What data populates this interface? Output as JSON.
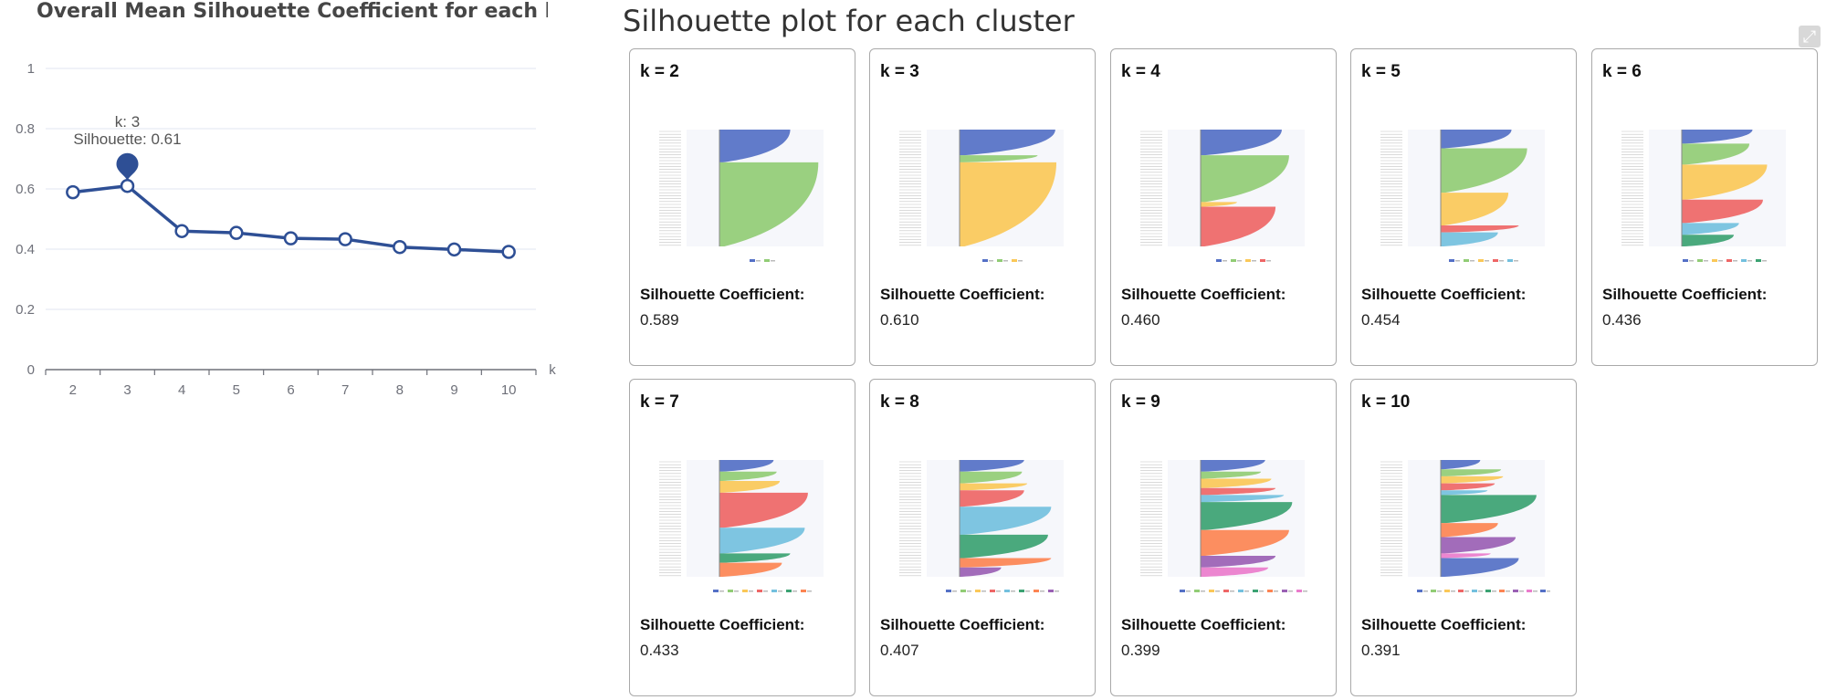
{
  "line_chart_title": "Overall Mean Silhouette Coefficient for each k",
  "panel_title": "Silhouette plot for each cluster",
  "expand_icon": "expand-icon",
  "coef_label": "Silhouette Coefficient:",
  "chart_data": {
    "type": "line",
    "title": "Overall Mean Silhouette Coefficient for each k",
    "xlabel": "k",
    "ylabel": "",
    "x": [
      2,
      3,
      4,
      5,
      6,
      7,
      8,
      9,
      10
    ],
    "values": [
      0.589,
      0.61,
      0.46,
      0.454,
      0.436,
      0.433,
      0.407,
      0.399,
      0.391
    ],
    "ylim": [
      0,
      1
    ],
    "yticks": [
      0,
      0.2,
      0.4,
      0.6,
      0.8,
      1
    ],
    "yticklabels": [
      "0",
      "0.2",
      "0.4",
      "0.6",
      "0.8",
      "1"
    ],
    "grid": true,
    "series_color": "#2e4f95",
    "tooltip": {
      "k_text": "k: 3",
      "value_text": "Silhouette: 0.61",
      "index": 1
    }
  },
  "cards": [
    {
      "k_label": "k = 2",
      "coef": "0.589",
      "clusters": [
        {
          "color": "#5470c6",
          "size": 0.28,
          "w": 0.68
        },
        {
          "color": "#91cc75",
          "size": 0.72,
          "w": 0.95
        }
      ]
    },
    {
      "k_label": "k = 3",
      "coef": "0.610",
      "clusters": [
        {
          "color": "#5470c6",
          "size": 0.22,
          "w": 0.92
        },
        {
          "color": "#91cc75",
          "size": 0.06,
          "w": 0.75
        },
        {
          "color": "#fac858",
          "size": 0.72,
          "w": 0.93
        }
      ]
    },
    {
      "k_label": "k = 4",
      "coef": "0.460",
      "clusters": [
        {
          "color": "#5470c6",
          "size": 0.22,
          "w": 0.78
        },
        {
          "color": "#91cc75",
          "size": 0.4,
          "w": 0.85
        },
        {
          "color": "#fac858",
          "size": 0.04,
          "w": 0.35
        },
        {
          "color": "#ee6666",
          "size": 0.34,
          "w": 0.72
        }
      ]
    },
    {
      "k_label": "k = 5",
      "coef": "0.454",
      "clusters": [
        {
          "color": "#5470c6",
          "size": 0.16,
          "w": 0.68
        },
        {
          "color": "#91cc75",
          "size": 0.38,
          "w": 0.83
        },
        {
          "color": "#fac858",
          "size": 0.28,
          "w": 0.65
        },
        {
          "color": "#ee6666",
          "size": 0.06,
          "w": 0.75
        },
        {
          "color": "#73c0de",
          "size": 0.12,
          "w": 0.55
        }
      ]
    },
    {
      "k_label": "k = 6",
      "coef": "0.436",
      "clusters": [
        {
          "color": "#5470c6",
          "size": 0.12,
          "w": 0.68
        },
        {
          "color": "#91cc75",
          "size": 0.18,
          "w": 0.65
        },
        {
          "color": "#fac858",
          "size": 0.3,
          "w": 0.82
        },
        {
          "color": "#ee6666",
          "size": 0.2,
          "w": 0.78
        },
        {
          "color": "#73c0de",
          "size": 0.1,
          "w": 0.55
        },
        {
          "color": "#3ba272",
          "size": 0.1,
          "w": 0.5
        }
      ]
    },
    {
      "k_label": "k = 7",
      "coef": "0.433",
      "clusters": [
        {
          "color": "#5470c6",
          "size": 0.1,
          "w": 0.52
        },
        {
          "color": "#91cc75",
          "size": 0.08,
          "w": 0.55
        },
        {
          "color": "#fac858",
          "size": 0.1,
          "w": 0.58
        },
        {
          "color": "#ee6666",
          "size": 0.3,
          "w": 0.85
        },
        {
          "color": "#73c0de",
          "size": 0.22,
          "w": 0.82
        },
        {
          "color": "#3ba272",
          "size": 0.08,
          "w": 0.68
        },
        {
          "color": "#fc8452",
          "size": 0.12,
          "w": 0.6
        }
      ]
    },
    {
      "k_label": "k = 8",
      "coef": "0.407",
      "clusters": [
        {
          "color": "#5470c6",
          "size": 0.1,
          "w": 0.62
        },
        {
          "color": "#91cc75",
          "size": 0.1,
          "w": 0.6
        },
        {
          "color": "#fac858",
          "size": 0.06,
          "w": 0.65
        },
        {
          "color": "#ee6666",
          "size": 0.14,
          "w": 0.62
        },
        {
          "color": "#73c0de",
          "size": 0.24,
          "w": 0.88
        },
        {
          "color": "#3ba272",
          "size": 0.2,
          "w": 0.85
        },
        {
          "color": "#fc8452",
          "size": 0.08,
          "w": 0.88
        },
        {
          "color": "#9a60b4",
          "size": 0.08,
          "w": 0.4
        }
      ]
    },
    {
      "k_label": "k = 9",
      "coef": "0.399",
      "clusters": [
        {
          "color": "#5470c6",
          "size": 0.1,
          "w": 0.62
        },
        {
          "color": "#91cc75",
          "size": 0.06,
          "w": 0.58
        },
        {
          "color": "#fac858",
          "size": 0.08,
          "w": 0.68
        },
        {
          "color": "#ee6666",
          "size": 0.06,
          "w": 0.72
        },
        {
          "color": "#73c0de",
          "size": 0.06,
          "w": 0.8
        },
        {
          "color": "#3ba272",
          "size": 0.24,
          "w": 0.88
        },
        {
          "color": "#fc8452",
          "size": 0.22,
          "w": 0.85
        },
        {
          "color": "#9a60b4",
          "size": 0.1,
          "w": 0.72
        },
        {
          "color": "#ea7ccc",
          "size": 0.08,
          "w": 0.65
        }
      ]
    },
    {
      "k_label": "k = 10",
      "coef": "0.391",
      "clusters": [
        {
          "color": "#5470c6",
          "size": 0.08,
          "w": 0.38
        },
        {
          "color": "#91cc75",
          "size": 0.06,
          "w": 0.58
        },
        {
          "color": "#fac858",
          "size": 0.06,
          "w": 0.6
        },
        {
          "color": "#ee6666",
          "size": 0.06,
          "w": 0.52
        },
        {
          "color": "#73c0de",
          "size": 0.04,
          "w": 0.45
        },
        {
          "color": "#3ba272",
          "size": 0.24,
          "w": 0.92
        },
        {
          "color": "#fc8452",
          "size": 0.12,
          "w": 0.55
        },
        {
          "color": "#9a60b4",
          "size": 0.14,
          "w": 0.72
        },
        {
          "color": "#ea7ccc",
          "size": 0.04,
          "w": 0.48
        },
        {
          "color": "#5470c6",
          "size": 0.16,
          "w": 0.75
        }
      ]
    }
  ]
}
